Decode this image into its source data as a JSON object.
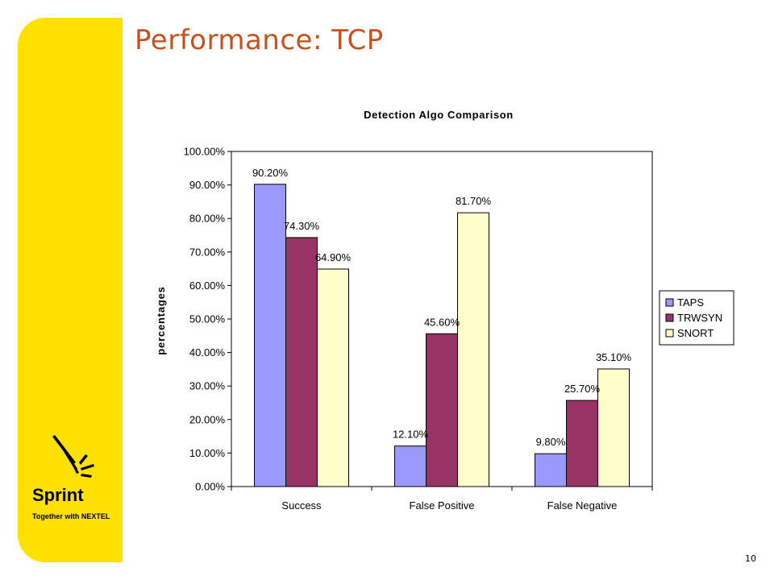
{
  "slide": {
    "title": "Performance: TCP",
    "page_number": "10",
    "title_color": "#C8501E",
    "sidebar_color": "#FFE000"
  },
  "brand": {
    "name": "Sprint",
    "tagline": "Together with NEXTEL"
  },
  "chart_data": {
    "type": "bar",
    "title": "Detection Algo Comparison",
    "xlabel": "",
    "ylabel": "percentages",
    "categories": [
      "Success",
      "False Positive",
      "False Negative"
    ],
    "series": [
      {
        "name": "TAPS",
        "values": [
          90.2,
          12.1,
          9.8
        ],
        "labels": [
          "90.20%",
          "12.10%",
          "9.80%"
        ],
        "color": "#9999FF"
      },
      {
        "name": "TRWSYN",
        "values": [
          74.3,
          45.6,
          25.7
        ],
        "labels": [
          "74.30%",
          "45.60%",
          "25.70%"
        ],
        "color": "#993366"
      },
      {
        "name": "SNORT",
        "values": [
          64.9,
          81.7,
          35.1
        ],
        "labels": [
          "64.90%",
          "81.70%",
          "35.10%"
        ],
        "color": "#FFFFCC"
      }
    ],
    "ylim": [
      0,
      100
    ],
    "yticks": [
      "0.00%",
      "10.00%",
      "20.00%",
      "30.00%",
      "40.00%",
      "50.00%",
      "60.00%",
      "70.00%",
      "80.00%",
      "90.00%",
      "100.00%"
    ],
    "grid": false,
    "legend": "right"
  }
}
